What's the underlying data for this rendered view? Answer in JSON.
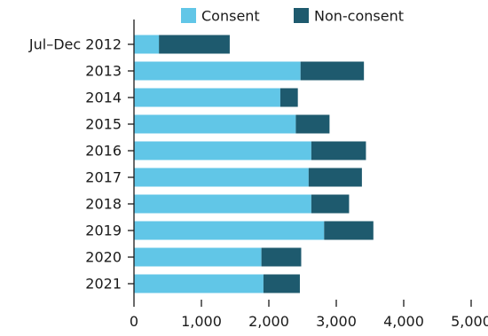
{
  "colors": {
    "consent": "#61C6E7",
    "non_consent": "#1E5A6E",
    "axis": "#1a1a1a"
  },
  "chart_data": {
    "type": "bar",
    "orientation": "horizontal",
    "stacked": true,
    "title": "",
    "xlabel": "",
    "ylabel": "",
    "categories": [
      "Jul–Dec 2012",
      "2013",
      "2014",
      "2015",
      "2016",
      "2017",
      "2018",
      "2019",
      "2020",
      "2021"
    ],
    "series": [
      {
        "name": "Consent",
        "color": "#61C6E7",
        "values": [
          370,
          2470,
          2170,
          2400,
          2630,
          2590,
          2630,
          2820,
          1890,
          1920
        ]
      },
      {
        "name": "Non-consent",
        "color": "#1E5A6E",
        "values": [
          1050,
          940,
          260,
          500,
          810,
          790,
          560,
          730,
          590,
          540
        ]
      }
    ],
    "xlim": [
      0,
      5000
    ],
    "xticks": [
      0,
      1000,
      2000,
      3000,
      4000,
      5000
    ],
    "xtick_labels": [
      "0",
      "1,000",
      "2,000",
      "3,000",
      "4,000",
      "5,000"
    ],
    "grid": false,
    "legend_position": "top"
  }
}
